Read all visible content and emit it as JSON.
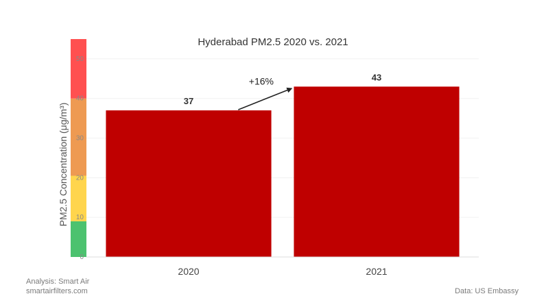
{
  "chart_data": {
    "type": "bar",
    "title": "Hyderabad PM2.5 2020 vs. 2021",
    "ylabel": "PM2.5 Concentration (μg/m³)",
    "categories": [
      "2020",
      "2021"
    ],
    "values": [
      37,
      43
    ],
    "data_labels": [
      "37",
      "43"
    ],
    "ylim": [
      0,
      55
    ],
    "yticks": [
      0,
      10,
      20,
      30,
      40,
      50
    ],
    "bar_color": "#bf0000",
    "grid": true,
    "annotation": {
      "text": "+16%",
      "from_category": "2020",
      "to_category": "2021"
    },
    "aqi_bands": [
      {
        "from": 0,
        "to": 9,
        "color": "#4cc26f"
      },
      {
        "from": 9,
        "to": 20.5,
        "color": "#ffd54d"
      },
      {
        "from": 20.5,
        "to": 40,
        "color": "#ee9a52"
      },
      {
        "from": 40,
        "to": 55,
        "color": "#ff5050"
      }
    ]
  },
  "footer": {
    "analysis": "Analysis: Smart Air",
    "website": "smartairfilters.com",
    "source": "Data: US Embassy"
  }
}
